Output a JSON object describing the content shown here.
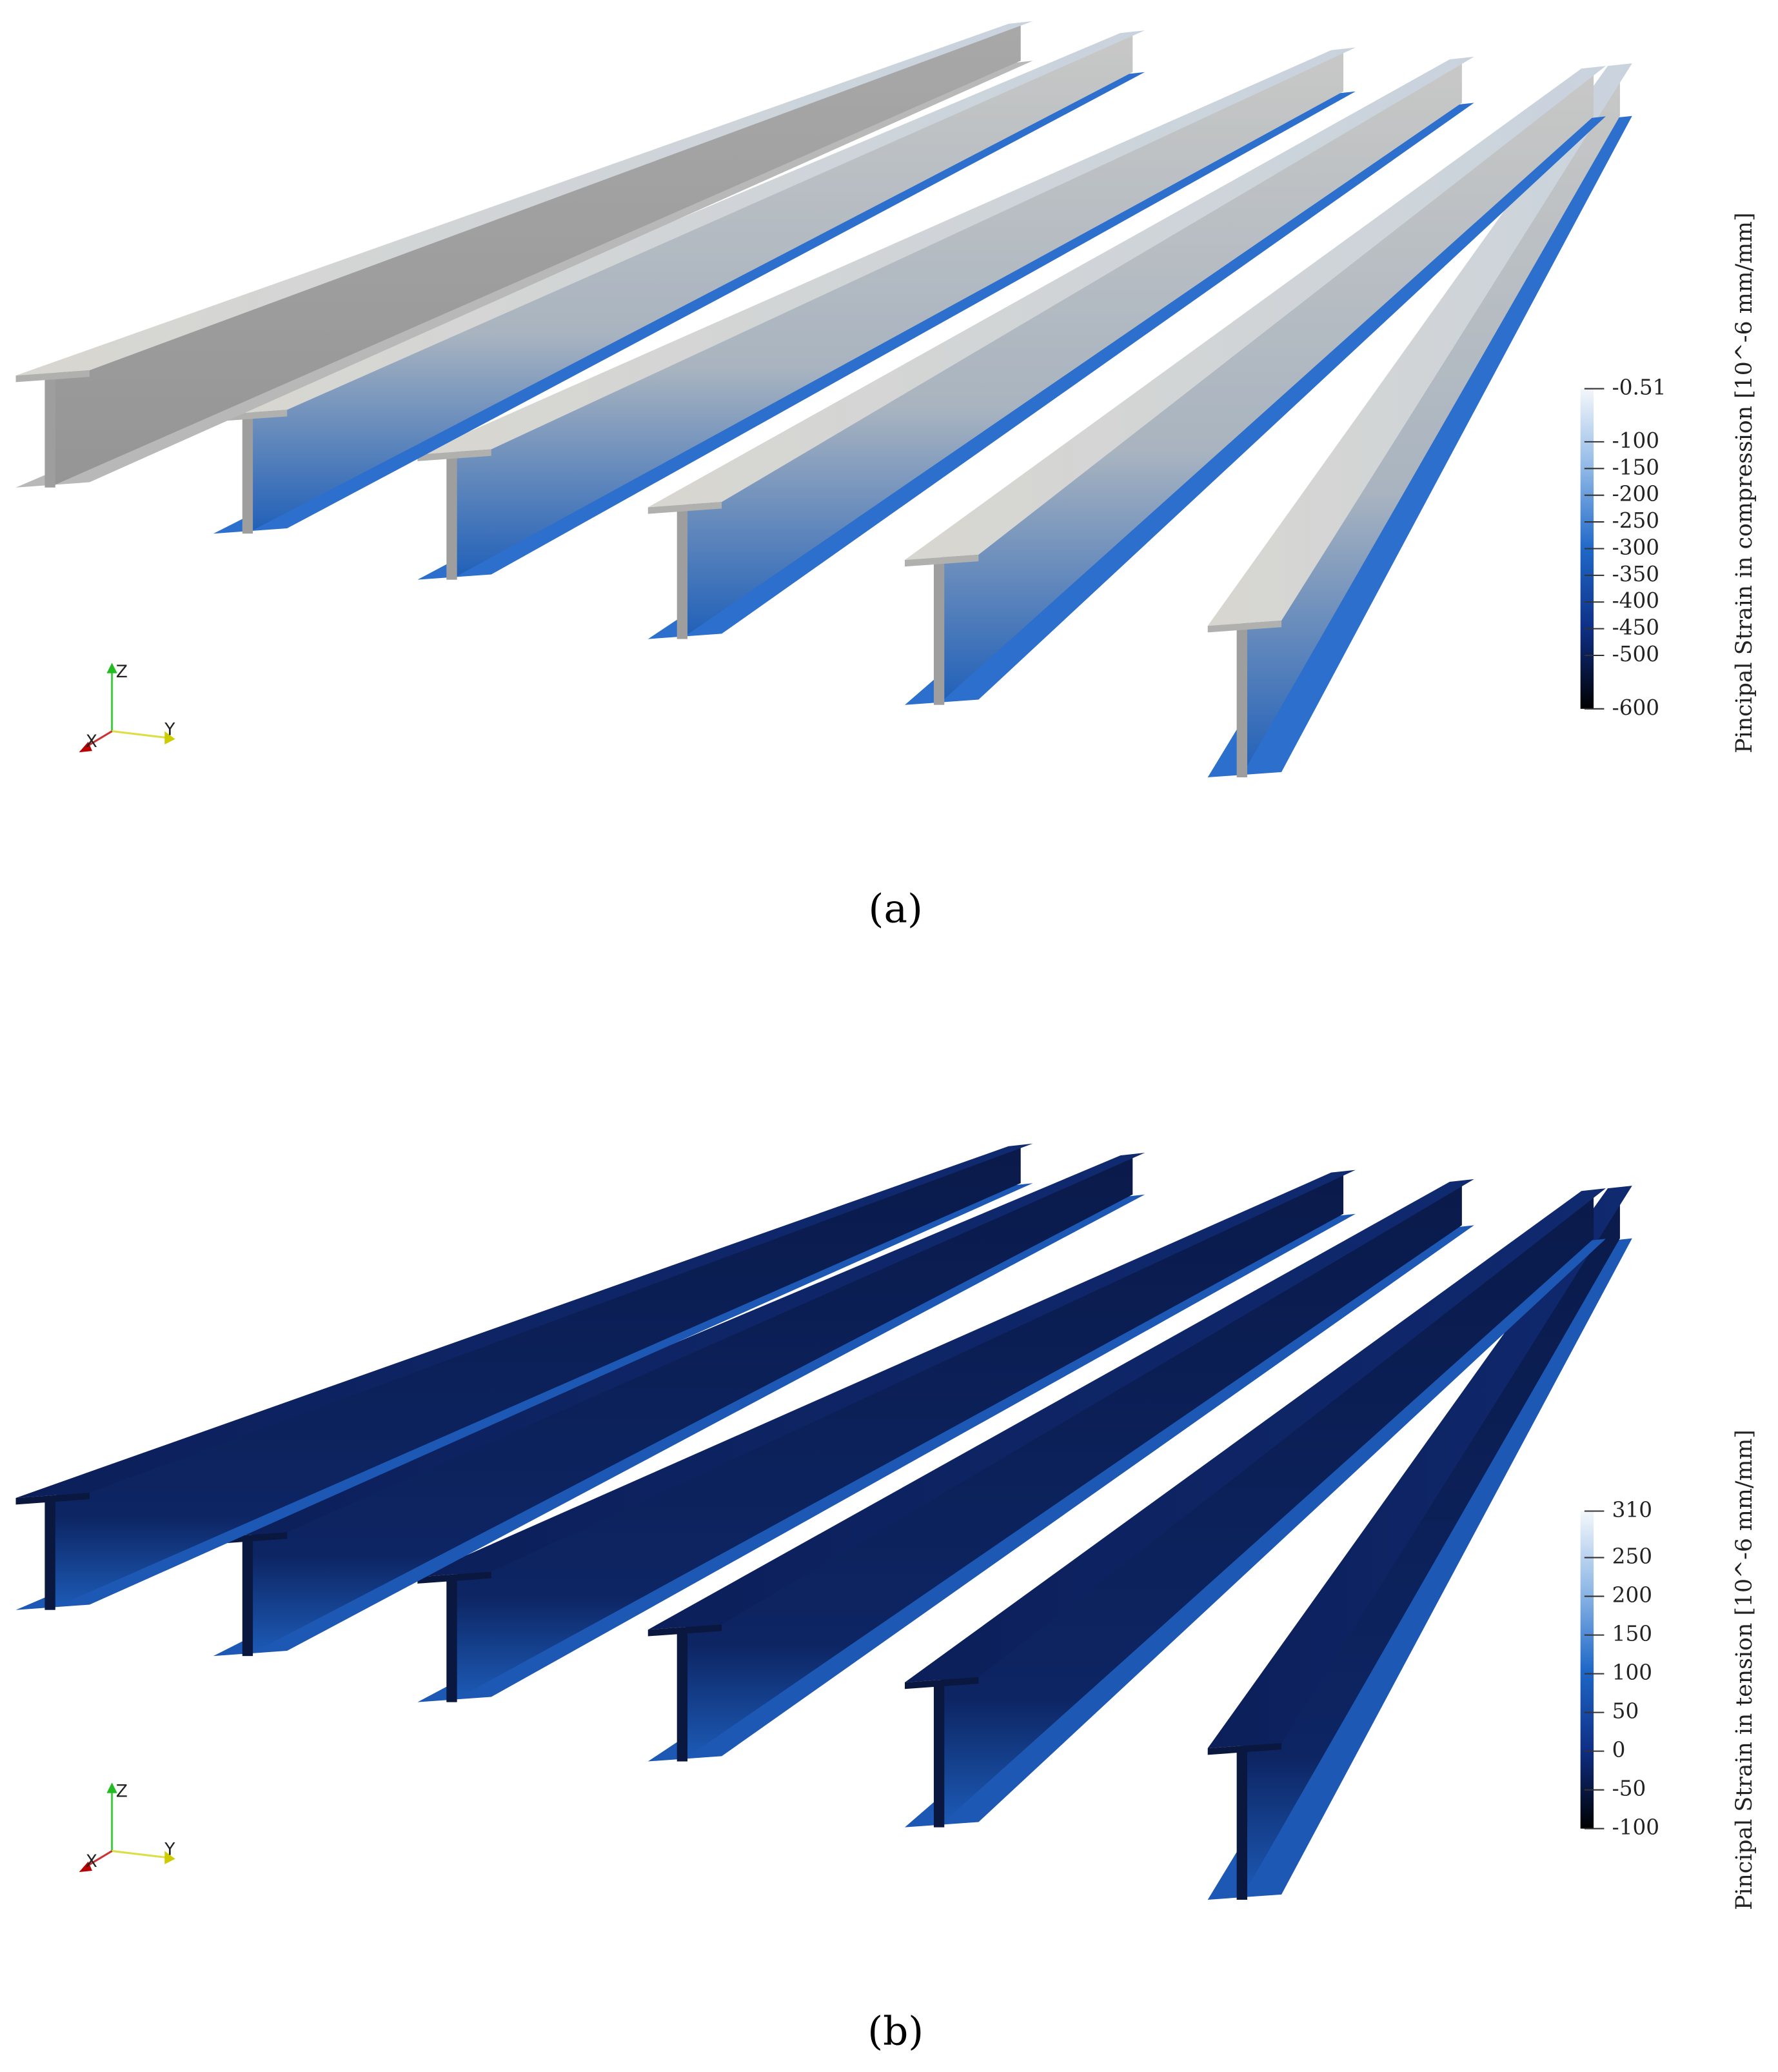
{
  "panels": [
    {
      "caption": "(a)",
      "colorbar": {
        "title": "Pincipal Strain in compression  [10^-6 mm/mm]",
        "ticks": [
          -0.51,
          -100,
          -150,
          -200,
          -250,
          -300,
          -350,
          -400,
          -450,
          -500,
          -600
        ]
      },
      "axes": [
        "Z",
        "Y",
        "X"
      ]
    },
    {
      "caption": "(b)",
      "colorbar": {
        "title": "Pincipal Strain in tension  [10^-6 mm/mm]",
        "ticks": [
          310,
          250,
          200,
          150,
          100,
          50,
          0,
          -50,
          -100
        ]
      },
      "axes": [
        "Z",
        "Y",
        "X"
      ]
    }
  ]
}
